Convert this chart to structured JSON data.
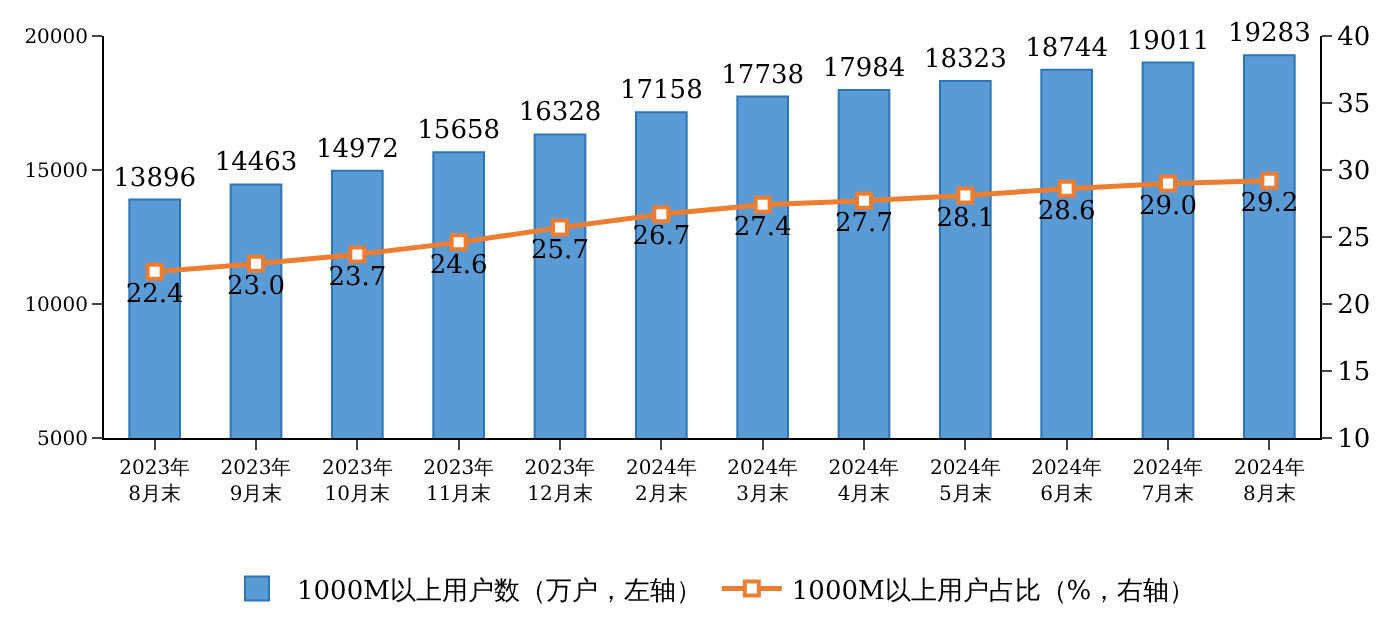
{
  "chart_data": {
    "type": "bar",
    "categories": [
      "2023年\n8月末",
      "2023年\n9月末",
      "2023年\n10月末",
      "2023年\n11月末",
      "2023年\n12月末",
      "2024年\n2月末",
      "2024年\n3月末",
      "2024年\n4月末",
      "2024年\n5月末",
      "2024年\n6月末",
      "2024年\n7月末",
      "2024年\n8月末"
    ],
    "series": [
      {
        "name": "1000M以上用户数（万户，左轴）",
        "color": "#5b9bd5",
        "values": [
          13896,
          14463,
          14972,
          15658,
          16328,
          17158,
          17738,
          17984,
          18323,
          18744,
          19011,
          19283
        ]
      },
      {
        "name": "1000M以上用户占比（%，右轴）",
        "type": "line",
        "axis": "y2",
        "color": "#ed7d31",
        "marker": "square",
        "values": [
          22.4,
          23.0,
          23.7,
          24.6,
          25.7,
          26.7,
          27.4,
          27.7,
          28.1,
          28.6,
          29.0,
          29.2
        ],
        "value_labels": [
          "22.4",
          "23.0",
          "23.7",
          "24.6",
          "25.7",
          "26.7",
          "27.4",
          "27.7",
          "28.1",
          "28.6",
          "29.0",
          "29.2"
        ]
      }
    ],
    "ylim": [
      5000,
      20000
    ],
    "yticks": [
      5000,
      10000,
      15000,
      20000
    ],
    "y2lim": [
      10,
      40
    ],
    "y2ticks": [
      10,
      15,
      20,
      25,
      30,
      35,
      40
    ],
    "data_labels": true,
    "legend": "bottom"
  }
}
